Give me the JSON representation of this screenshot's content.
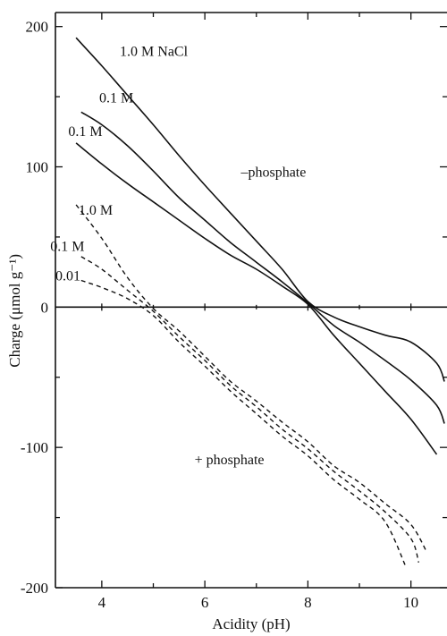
{
  "chart_data": {
    "type": "line",
    "title": "",
    "xlabel": "Acidity (pH)",
    "ylabel": "Charge (μmol g⁻¹)",
    "xlim": [
      3.1,
      10.7
    ],
    "ylim": [
      -200,
      210
    ],
    "x_ticks": [
      4,
      6,
      8,
      10
    ],
    "y_ticks": [
      200,
      100,
      0,
      -100,
      -200
    ],
    "grid": false,
    "legend": "none",
    "zero_line": true,
    "annotations": [
      {
        "text": "1.0 M NaCl",
        "x": 4.35,
        "y": 179
      },
      {
        "text": "0.1 M",
        "x": 3.95,
        "y": 146
      },
      {
        "text": "0.1 M",
        "x": 3.35,
        "y": 122
      },
      {
        "text": "–phosphate",
        "x": 6.7,
        "y": 93
      },
      {
        "text": "1.0 M",
        "x": 3.55,
        "y": 66
      },
      {
        "text": "0.1 M",
        "x": 3.0,
        "y": 40
      },
      {
        "text": "0.01",
        "x": 3.1,
        "y": 19
      },
      {
        "text": "+ phosphate",
        "x": 5.8,
        "y": -112
      }
    ],
    "series": [
      {
        "group": "-phosphate",
        "style": "solid",
        "x": [
          3.5,
          4.0,
          4.5,
          5.0,
          5.5,
          6.0,
          6.5,
          7.0,
          7.5,
          8.0,
          8.5,
          9.0,
          9.5,
          10.0,
          10.5,
          10.65
        ],
        "y": [
          192,
          172,
          151,
          130,
          108,
          87,
          67,
          47,
          27,
          4,
          -7,
          -14,
          -20,
          -25,
          -40,
          -53
        ]
      },
      {
        "group": "-phosphate",
        "style": "solid",
        "x": [
          3.6,
          4.0,
          4.5,
          5.0,
          5.5,
          6.0,
          6.5,
          7.0,
          7.5,
          8.0,
          8.5,
          9.0,
          9.5,
          10.0,
          10.5,
          10.65
        ],
        "y": [
          139,
          130,
          115,
          97,
          78,
          62,
          46,
          32,
          18,
          3,
          -13,
          -25,
          -38,
          -52,
          -70,
          -83
        ]
      },
      {
        "group": "-phosphate",
        "style": "solid",
        "x": [
          3.5,
          4.0,
          4.5,
          5.0,
          5.5,
          6.0,
          6.5,
          7.0,
          7.5,
          8.0,
          8.5,
          9.0,
          9.5,
          10.0,
          10.5
        ],
        "y": [
          117,
          102,
          88,
          75,
          62,
          49,
          37,
          27,
          15,
          2,
          -20,
          -40,
          -60,
          -80,
          -105
        ]
      },
      {
        "group": "+phosphate",
        "style": "dashed",
        "x": [
          3.5,
          4.0,
          4.5,
          5.0,
          5.5,
          6.0,
          6.5,
          7.0,
          7.5,
          8.0,
          8.5,
          9.0,
          9.5,
          10.0,
          10.3
        ],
        "y": [
          73,
          49,
          21,
          -1,
          -17,
          -35,
          -53,
          -67,
          -82,
          -96,
          -113,
          -125,
          -140,
          -155,
          -174
        ]
      },
      {
        "group": "+phosphate",
        "style": "dashed",
        "x": [
          3.6,
          4.0,
          4.5,
          5.0,
          5.5,
          6.0,
          6.5,
          7.0,
          7.5,
          8.0,
          8.5,
          9.0,
          9.5,
          10.0,
          10.15
        ],
        "y": [
          36,
          27,
          12,
          -3,
          -21,
          -38,
          -56,
          -71,
          -87,
          -101,
          -117,
          -131,
          -146,
          -165,
          -182
        ]
      },
      {
        "group": "+phosphate",
        "style": "dashed",
        "x": [
          3.6,
          4.0,
          4.5,
          5.0,
          5.5,
          6.0,
          6.5,
          7.0,
          7.5,
          8.0,
          8.5,
          9.0,
          9.5,
          9.9
        ],
        "y": [
          19,
          14,
          6,
          -6,
          -25,
          -42,
          -60,
          -76,
          -92,
          -106,
          -123,
          -137,
          -153,
          -185
        ]
      }
    ]
  }
}
